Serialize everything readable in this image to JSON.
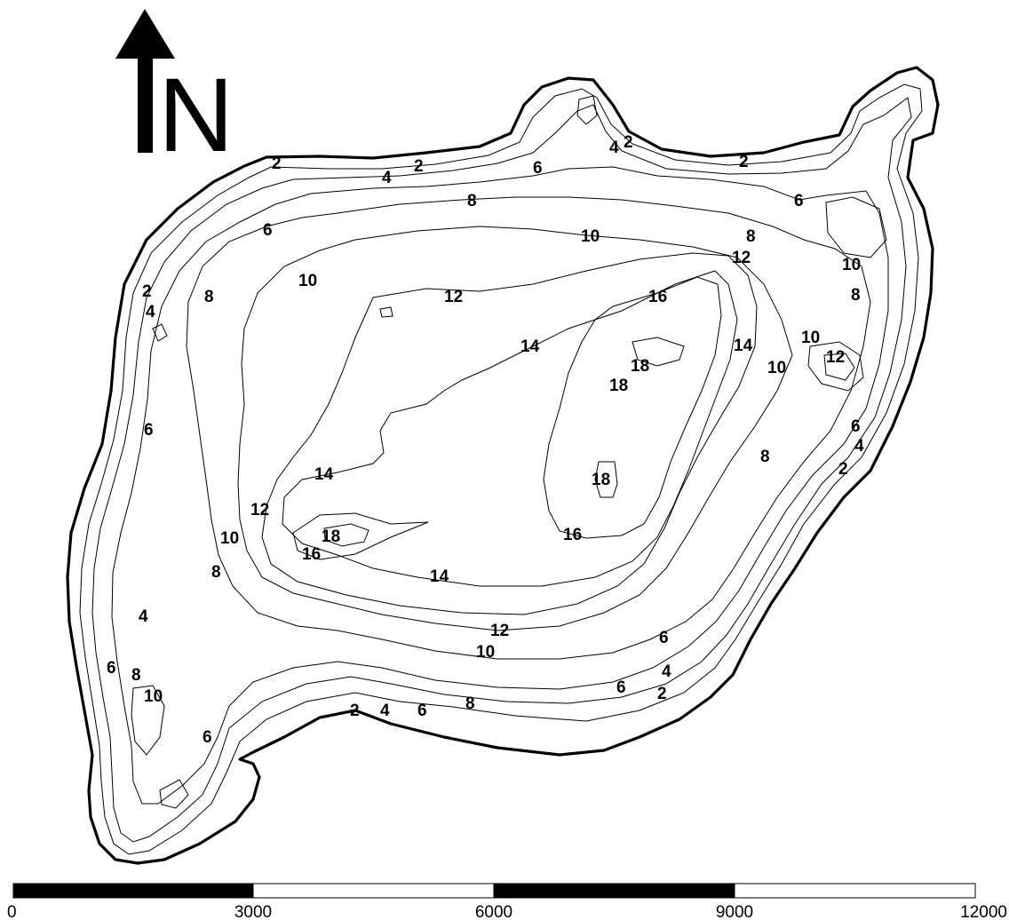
{
  "north_arrow": {
    "letter": "N",
    "icon": "north-arrow-icon"
  },
  "contour_labels": {
    "c2": "2",
    "c4": "4",
    "c6": "6",
    "c8": "8",
    "c10": "10",
    "c12": "12",
    "c14": "14",
    "c16": "16",
    "c18": "18"
  },
  "scale_bar": {
    "ticks": [
      "0",
      "3000",
      "6000",
      "9000",
      "12000"
    ],
    "colors": [
      "#000000",
      "#ffffff",
      "#000000",
      "#ffffff"
    ]
  },
  "colors": {
    "line": "#000000",
    "background": "#ffffff"
  }
}
